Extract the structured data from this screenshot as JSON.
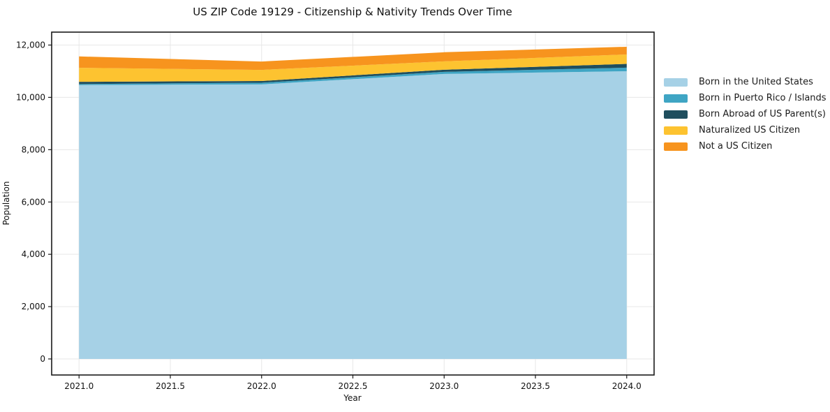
{
  "chart_data": {
    "type": "area",
    "stacked": true,
    "title": "US ZIP Code 19129 - Citizenship & Nativity Trends Over Time",
    "xlabel": "Year",
    "ylabel": "Population",
    "x": [
      2021,
      2022,
      2023,
      2024
    ],
    "series": [
      {
        "name": "Born in the United States",
        "color": "#a6d1e6",
        "values": [
          10470,
          10495,
          10895,
          11000
        ]
      },
      {
        "name": "Born in Puerto Rico / Islands",
        "color": "#3fa5c4",
        "values": [
          40,
          65,
          80,
          135
        ]
      },
      {
        "name": "Born Abroad of US Parent(s)",
        "color": "#1f4e5e",
        "values": [
          85,
          65,
          80,
          145
        ]
      },
      {
        "name": "Naturalized US Citizen",
        "color": "#fdc330",
        "values": [
          535,
          425,
          320,
          360
        ]
      },
      {
        "name": "Not a US Citizen",
        "color": "#f7941e",
        "values": [
          435,
          320,
          350,
          295
        ]
      }
    ],
    "stacked_totals": [
      11565,
      11370,
      11725,
      11935
    ],
    "xticks": {
      "values": [
        2021.0,
        2021.5,
        2022.0,
        2022.5,
        2023.0,
        2023.5,
        2024.0
      ],
      "labels": [
        "2021.0",
        "2021.5",
        "2022.0",
        "2022.5",
        "2023.0",
        "2023.5",
        "2024.0"
      ]
    },
    "yticks": {
      "values": [
        0,
        2000,
        4000,
        6000,
        8000,
        10000,
        12000
      ],
      "labels": [
        "0",
        "2,000",
        "4,000",
        "6,000",
        "8,000",
        "10,000",
        "12,000"
      ]
    },
    "xlim": [
      2020.85,
      2024.15
    ],
    "ylim": [
      -614,
      12494
    ],
    "grid": true,
    "grid_color": "#e7e7e7",
    "axis_color": "#1a1a1a",
    "legend_position": "right-outside-top"
  }
}
